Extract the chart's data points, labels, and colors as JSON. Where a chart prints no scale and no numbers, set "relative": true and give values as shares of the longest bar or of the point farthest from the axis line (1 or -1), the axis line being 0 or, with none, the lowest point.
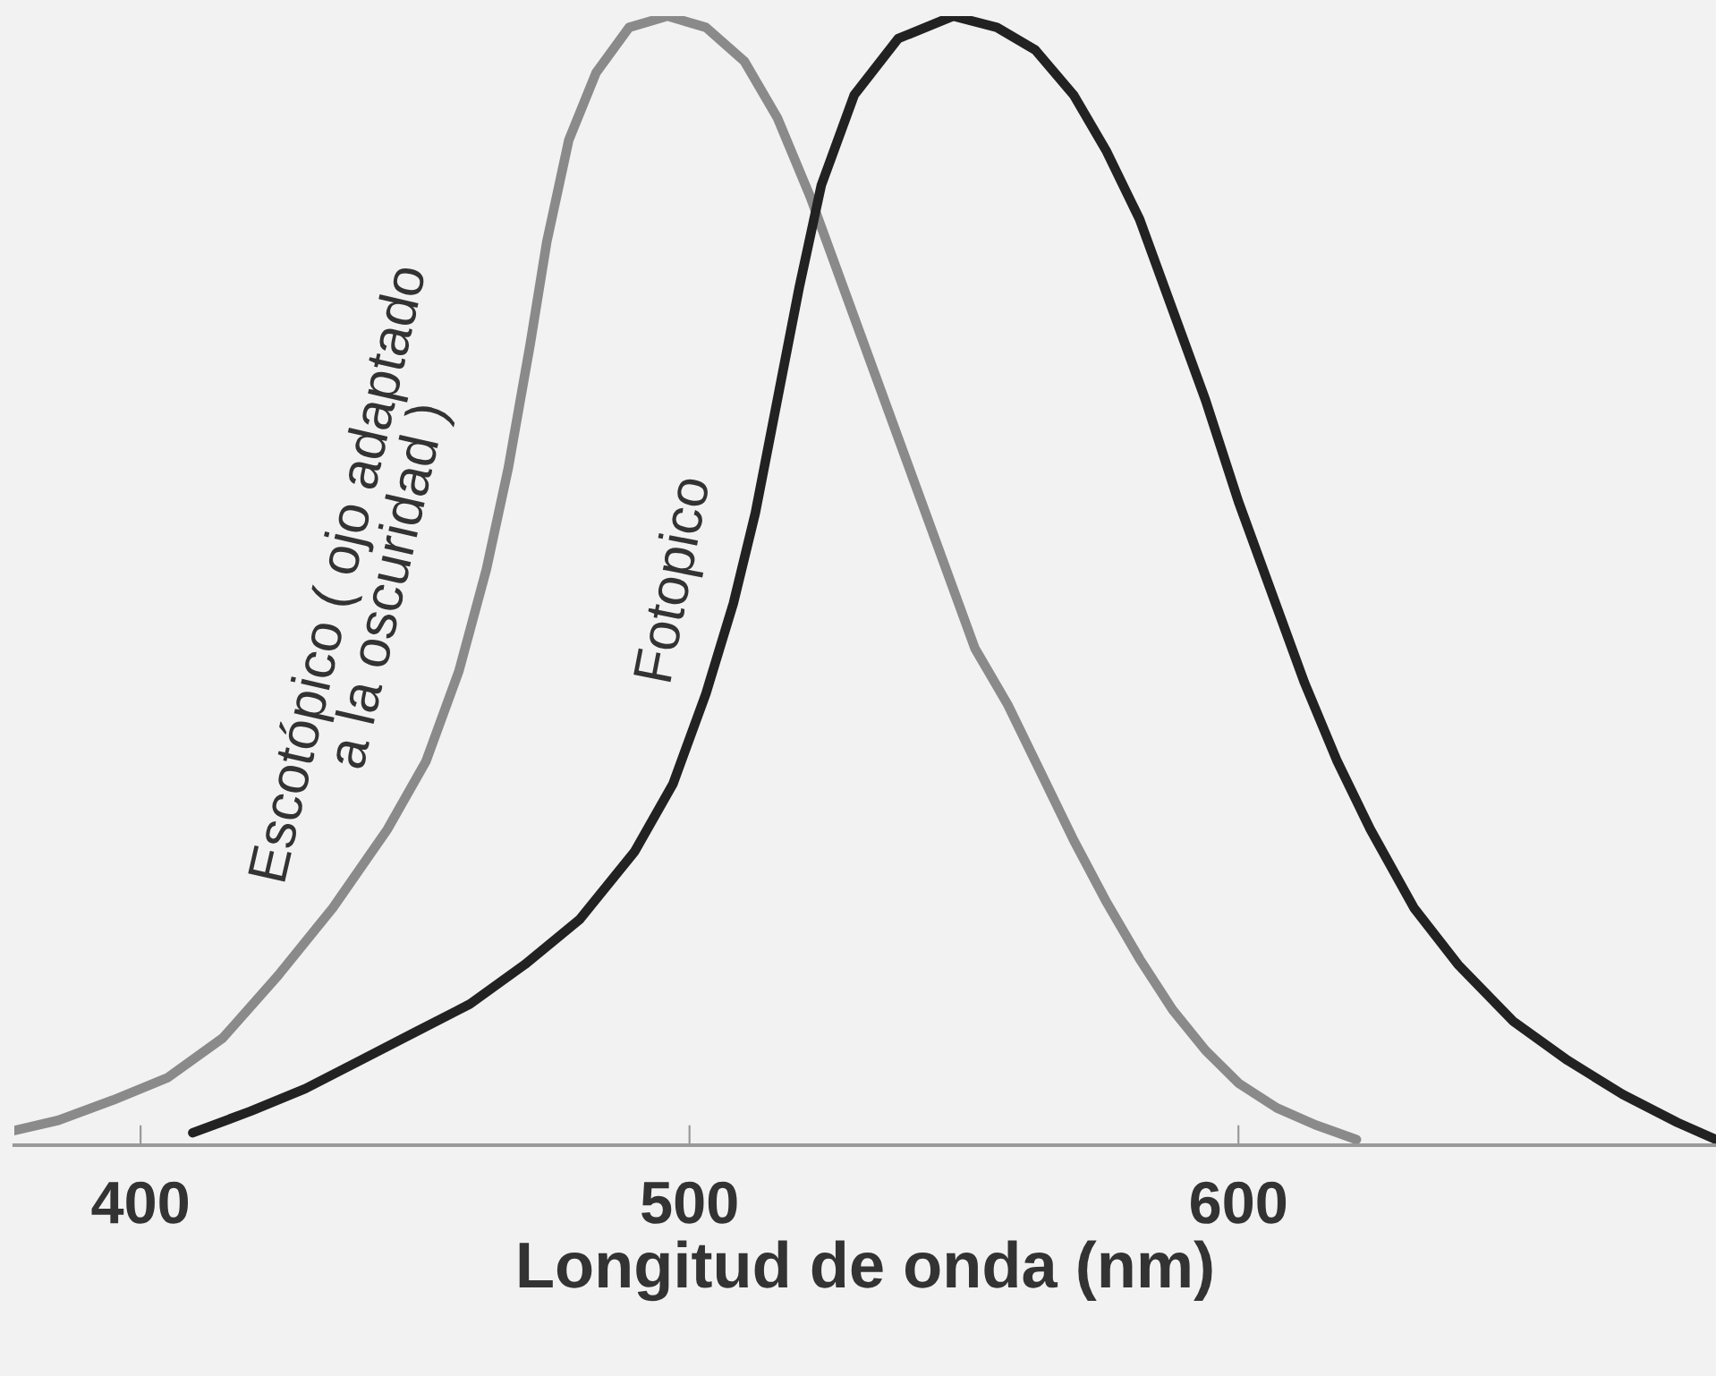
{
  "chart_data": {
    "type": "line",
    "relative": true,
    "xlabel": "Longitud de onda (nm)",
    "xlim": [
      377,
      687
    ],
    "xticks": [
      400,
      500,
      600
    ],
    "grid": false,
    "legend": false,
    "marker": "none",
    "line_style": "solid",
    "series": [
      {
        "name": "Escotópico ( ojo adaptado\na la oscuridad )",
        "color": "#8a8a8a",
        "x": [
          377,
          385,
          395,
          405,
          415,
          425,
          435,
          445,
          452,
          458,
          463,
          467,
          471,
          474,
          478,
          483,
          489,
          496,
          503,
          510,
          516,
          522,
          528,
          534,
          540,
          546,
          552,
          558,
          564,
          570,
          576,
          582,
          588,
          594,
          600,
          607,
          614,
          621.5
        ],
        "values": [
          0.013,
          0.022,
          0.04,
          0.06,
          0.095,
          0.15,
          0.21,
          0.28,
          0.34,
          0.42,
          0.51,
          0.6,
          0.71,
          0.8,
          0.89,
          0.95,
          0.99,
          1.0,
          0.99,
          0.96,
          0.91,
          0.84,
          0.76,
          0.68,
          0.6,
          0.52,
          0.44,
          0.39,
          0.33,
          0.27,
          0.215,
          0.165,
          0.12,
          0.084,
          0.055,
          0.033,
          0.018,
          0.005
        ]
      },
      {
        "name": "Fotopico",
        "color": "#222222",
        "x": [
          409.5,
          420,
          430,
          440,
          450,
          460,
          470,
          480,
          490,
          497,
          503,
          508,
          512,
          516,
          520,
          524,
          530,
          538,
          548,
          556,
          563,
          570,
          576,
          582,
          588,
          594,
          600,
          606,
          612,
          618,
          624,
          632,
          640,
          650,
          660,
          670,
          680,
          687
        ],
        "values": [
          0.011,
          0.03,
          0.05,
          0.075,
          0.1,
          0.125,
          0.16,
          0.2,
          0.26,
          0.32,
          0.4,
          0.48,
          0.56,
          0.66,
          0.76,
          0.85,
          0.93,
          0.98,
          1.0,
          0.99,
          0.97,
          0.93,
          0.88,
          0.82,
          0.74,
          0.66,
          0.57,
          0.49,
          0.41,
          0.34,
          0.28,
          0.21,
          0.16,
          0.11,
          0.075,
          0.045,
          0.02,
          0.005
        ]
      }
    ]
  }
}
